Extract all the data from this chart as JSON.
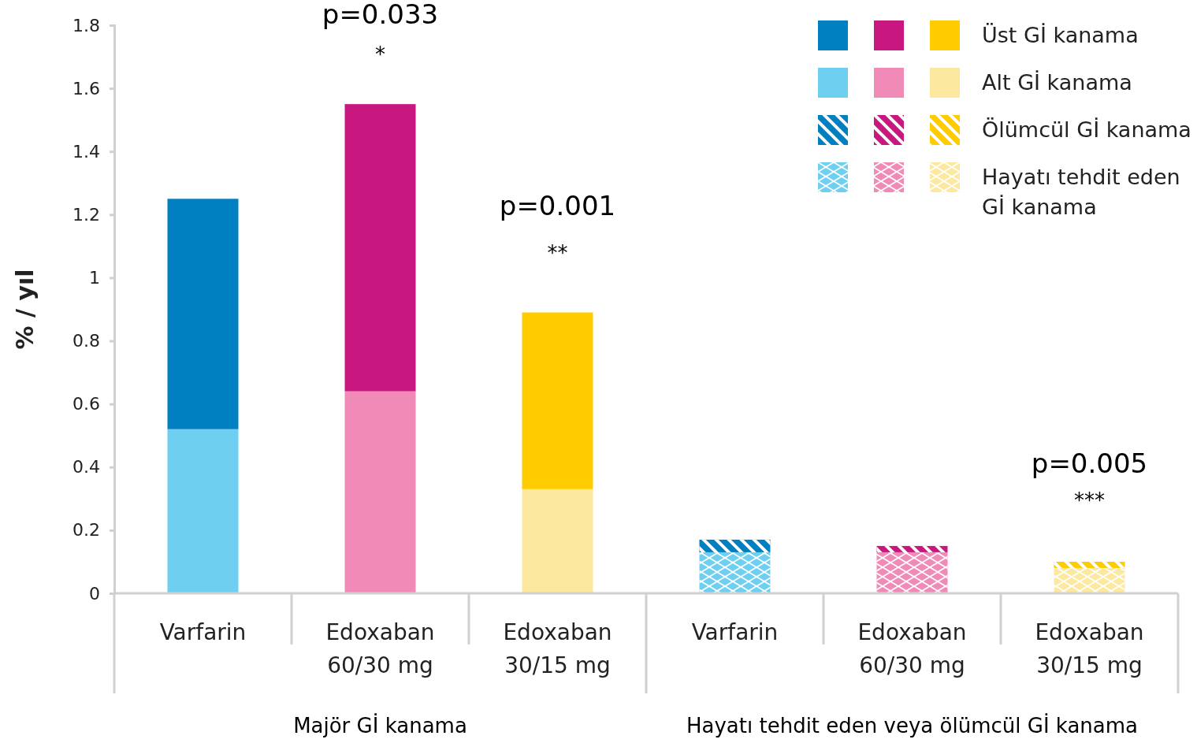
{
  "chart_data": {
    "type": "bar",
    "stacked": true,
    "ylabel": "% / yıl",
    "categories": [
      "Varfarin",
      "Edoxaban 60/30 mg",
      "Edoxaban 30/15 mg",
      "Varfarin",
      "Edoxaban 60/30 mg",
      "Edoxaban 30/15 mg"
    ],
    "series": [
      {
        "name": "Alt Gİ kanama",
        "colors": [
          "#6ecff0",
          "#f08ab6",
          "#fde8a0",
          null,
          null,
          null
        ],
        "values": [
          0.52,
          0.64,
          0.33,
          null,
          null,
          null
        ]
      },
      {
        "name": "Üst Gİ kanama",
        "colors": [
          "#0080c0",
          "#c8187f",
          "#ffcc00",
          null,
          null,
          null
        ],
        "values": [
          0.73,
          0.91,
          0.56,
          null,
          null,
          null
        ]
      },
      {
        "name": "Hayatı tehdit eden Gİ kanama",
        "colors": [
          null,
          null,
          null,
          "#6ecff0",
          "#f08ab6",
          "#fde8a0"
        ],
        "values": [
          null,
          null,
          null,
          0.13,
          0.13,
          0.08
        ]
      },
      {
        "name": "Ölümcül Gİ kanama",
        "colors": [
          null,
          null,
          null,
          "#0080c0",
          "#c8187f",
          "#ffcc00"
        ],
        "values": [
          null,
          null,
          null,
          0.04,
          0.02,
          0.02
        ]
      }
    ],
    "ylim": [
      0,
      1.8
    ],
    "yticks": [
      0,
      0.2,
      0.4,
      0.6,
      0.8,
      1,
      1.2,
      1.4,
      1.6,
      1.8
    ],
    "grid": false,
    "legend": "top right",
    "annotations": [
      "p=0.033",
      "*",
      "p=0.001",
      "**",
      "p=0.005",
      "***",
      "Majör Gİ kanama",
      "Hayatı tehdit eden veya ölümcül Gİ kanama"
    ]
  }
}
